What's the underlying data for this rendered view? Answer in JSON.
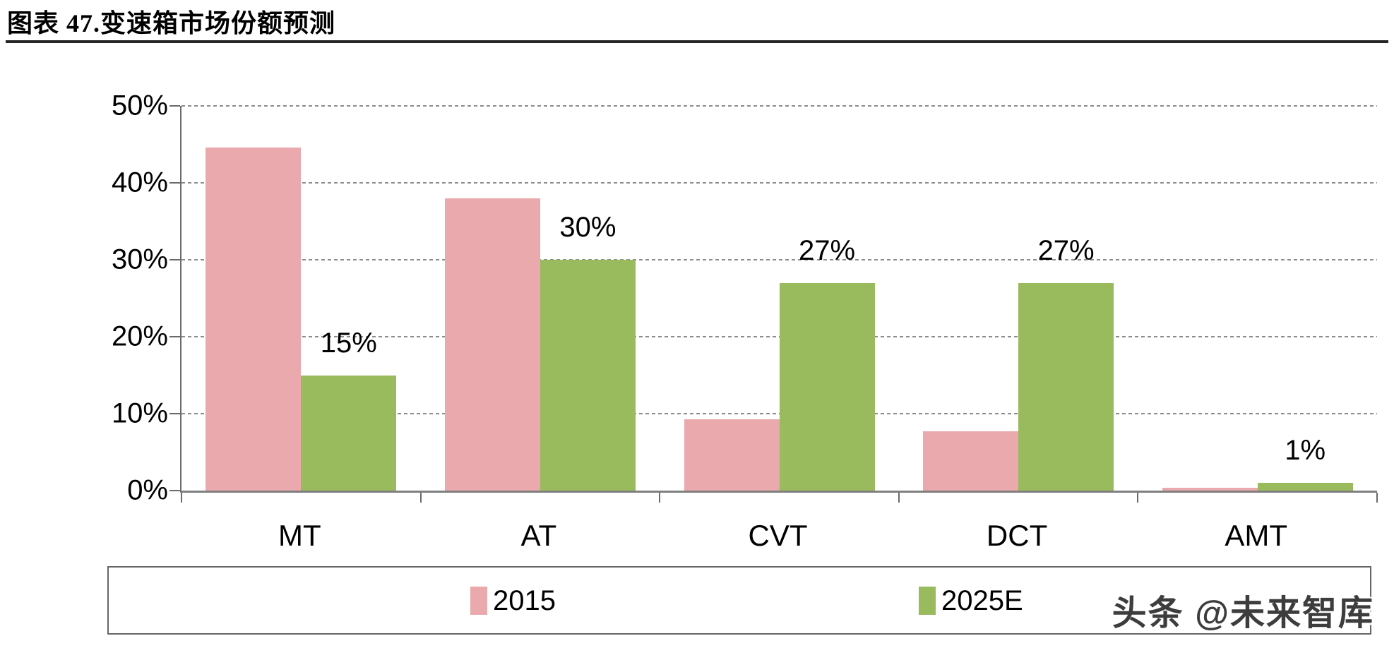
{
  "header": {
    "title": "图表 47.变速箱市场份额预测"
  },
  "watermark": "头条 @未来智库",
  "chart_data": {
    "type": "bar",
    "title": "变速箱市场份额预测",
    "categories": [
      "MT",
      "AT",
      "CVT",
      "DCT",
      "AMT"
    ],
    "series": [
      {
        "name": "2015",
        "color": "#EAA9AC",
        "values": [
          44.6,
          38,
          9.3,
          7.7,
          0.4
        ],
        "data_labels": [
          "",
          "",
          "",
          "",
          ""
        ]
      },
      {
        "name": "2025E",
        "color": "#99BA5D",
        "values": [
          15,
          30,
          27,
          27,
          1
        ],
        "data_labels": [
          "15%",
          "30%",
          "27%",
          "27%",
          "1%"
        ]
      }
    ],
    "xlabel": "",
    "ylabel": "",
    "ylim": [
      0,
      50
    ],
    "yticks": [
      "0%",
      "10%",
      "20%",
      "30%",
      "40%",
      "50%"
    ],
    "grid": "horizontal-dashed",
    "legend_position": "bottom-box"
  }
}
